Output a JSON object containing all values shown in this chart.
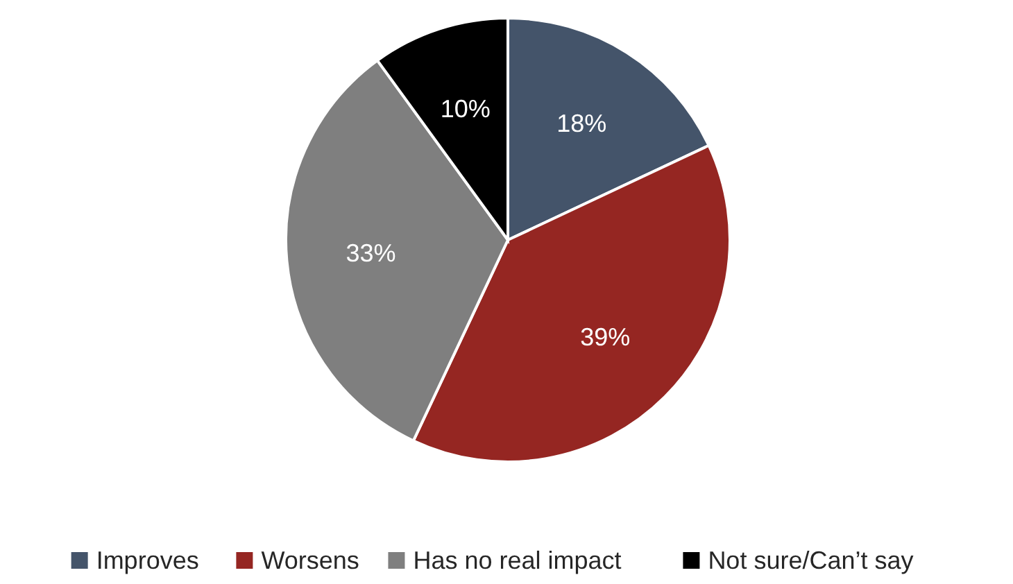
{
  "chart_data": {
    "type": "pie",
    "categories": [
      "Improves",
      "Worsens",
      "Has no real impact",
      "Not sure/Can’t say"
    ],
    "values": [
      18,
      39,
      33,
      10
    ],
    "colors": [
      "#44546a",
      "#952622",
      "#7f7f7f",
      "#000000"
    ],
    "value_labels": [
      "18%",
      "39%",
      "33%",
      "10%"
    ],
    "legend": "bottom"
  }
}
